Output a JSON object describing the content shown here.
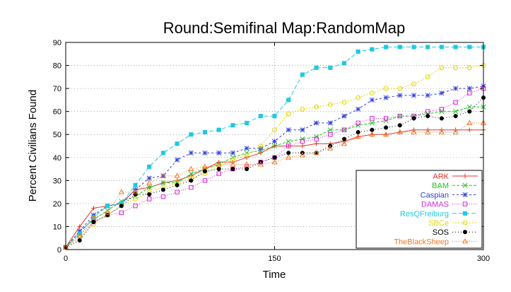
{
  "chart_data": {
    "type": "line",
    "title": "Round:Semifinal Map:RandomMap",
    "xlabel": "Time",
    "ylabel": "Percent Civilians Found",
    "xlim": [
      0,
      300
    ],
    "ylim": [
      0,
      90
    ],
    "x_ticks": [
      0,
      150,
      300
    ],
    "y_ticks": [
      0,
      10,
      20,
      30,
      40,
      50,
      60,
      70,
      80,
      90
    ],
    "grid": "dotted major grid",
    "legend_position": "bottom-right",
    "series": [
      {
        "name": "ARK",
        "color": "#e8312d",
        "marker": "plus",
        "x": [
          0,
          10,
          20,
          30,
          40,
          50,
          60,
          70,
          80,
          90,
          100,
          110,
          120,
          130,
          140,
          150,
          160,
          170,
          180,
          190,
          200,
          210,
          220,
          230,
          240,
          250,
          260,
          270,
          280,
          290,
          300
        ],
        "y": [
          1,
          10,
          18,
          19,
          20,
          26,
          27,
          29,
          30,
          32,
          35,
          38,
          38,
          40,
          42,
          45,
          45,
          45,
          46,
          46,
          47,
          49,
          50,
          50,
          51,
          52,
          52,
          52,
          52,
          52,
          52
        ]
      },
      {
        "name": "BAM",
        "color": "#22c322",
        "marker": "x",
        "x": [
          0,
          10,
          20,
          30,
          40,
          50,
          60,
          70,
          80,
          90,
          100,
          110,
          120,
          130,
          140,
          150,
          160,
          170,
          180,
          190,
          200,
          210,
          220,
          230,
          240,
          250,
          260,
          270,
          280,
          290,
          300
        ],
        "y": [
          1,
          8,
          13,
          17,
          21,
          23,
          27,
          29,
          29,
          33,
          35,
          37,
          40,
          42,
          43,
          45,
          47,
          48,
          49,
          52,
          52,
          54,
          55,
          56,
          58,
          58,
          59,
          60,
          60,
          62,
          62
        ]
      },
      {
        "name": "Caspian",
        "color": "#2f3fd8",
        "marker": "asterisk",
        "x": [
          0,
          10,
          20,
          30,
          40,
          50,
          60,
          70,
          80,
          90,
          100,
          110,
          120,
          130,
          140,
          150,
          160,
          170,
          180,
          190,
          200,
          210,
          220,
          230,
          240,
          250,
          260,
          270,
          280,
          290,
          300
        ],
        "y": [
          1,
          8,
          15,
          19,
          20,
          26,
          31,
          32,
          39,
          42,
          42,
          42,
          42,
          44,
          44,
          47,
          52,
          52,
          55,
          55,
          58,
          61,
          65,
          66,
          67,
          67,
          67,
          68,
          70,
          70,
          71
        ]
      },
      {
        "name": "DAMAS",
        "color": "#d429d4",
        "marker": "square-open",
        "x": [
          0,
          10,
          20,
          30,
          40,
          50,
          60,
          70,
          80,
          90,
          100,
          110,
          120,
          130,
          140,
          150,
          160,
          170,
          180,
          190,
          200,
          210,
          220,
          230,
          240,
          250,
          260,
          270,
          280,
          290,
          300
        ],
        "y": [
          1,
          6,
          12,
          15,
          16,
          19,
          22,
          23,
          25,
          27,
          30,
          33,
          35,
          36,
          38,
          40,
          45,
          47,
          48,
          50,
          52,
          55,
          57,
          57,
          58,
          58,
          60,
          61,
          64,
          68,
          70
        ]
      },
      {
        "name": "ResQFreiburg",
        "color": "#20c8e0",
        "marker": "square-filled",
        "x": [
          0,
          10,
          20,
          30,
          40,
          50,
          60,
          70,
          80,
          90,
          100,
          110,
          120,
          130,
          140,
          150,
          160,
          170,
          180,
          190,
          200,
          210,
          220,
          230,
          240,
          250,
          260,
          270,
          280,
          290,
          300
        ],
        "y": [
          1,
          7,
          14,
          19,
          20,
          28,
          36,
          42,
          46,
          50,
          51,
          52,
          54,
          55,
          58,
          58,
          65,
          76,
          79,
          79,
          81,
          86,
          87,
          88,
          88,
          88,
          88,
          88,
          88,
          88,
          88
        ]
      },
      {
        "name": "SBCe",
        "color": "#e0d800",
        "marker": "circle-open",
        "x": [
          0,
          10,
          20,
          30,
          40,
          50,
          60,
          70,
          80,
          90,
          100,
          110,
          120,
          130,
          140,
          150,
          160,
          170,
          180,
          190,
          200,
          210,
          220,
          230,
          240,
          250,
          260,
          270,
          280,
          290,
          300
        ],
        "y": [
          1,
          5,
          11,
          15,
          19,
          22,
          25,
          27,
          29,
          31,
          33,
          36,
          39,
          41,
          45,
          52,
          59,
          61,
          62,
          63,
          64,
          66,
          68,
          70,
          70,
          72,
          75,
          79,
          79,
          79,
          80
        ]
      },
      {
        "name": "SOS",
        "color": "#000000",
        "marker": "circle-filled",
        "x": [
          0,
          10,
          20,
          30,
          40,
          50,
          60,
          70,
          80,
          90,
          100,
          110,
          120,
          130,
          140,
          150,
          160,
          170,
          180,
          190,
          200,
          210,
          220,
          230,
          240,
          250,
          260,
          270,
          280,
          290,
          300
        ],
        "y": [
          1,
          4,
          12,
          15,
          19,
          24,
          24,
          26,
          28,
          30,
          34,
          35,
          35,
          35,
          38,
          40,
          42,
          42,
          42,
          45,
          48,
          51,
          52,
          53,
          54,
          57,
          58,
          57,
          58,
          60,
          66
        ]
      },
      {
        "name": "TheBlackSheep",
        "color": "#f07828",
        "marker": "triangle-open",
        "x": [
          0,
          10,
          20,
          30,
          40,
          50,
          60,
          70,
          80,
          90,
          100,
          110,
          120,
          130,
          140,
          150,
          160,
          170,
          180,
          190,
          200,
          210,
          220,
          230,
          240,
          250,
          260,
          270,
          280,
          290,
          300
        ],
        "y": [
          1,
          6,
          14,
          16,
          25,
          25,
          29,
          32,
          32,
          35,
          36,
          37,
          37,
          37,
          37,
          38,
          40,
          41,
          42,
          44,
          46,
          49,
          50,
          50,
          51,
          51,
          51,
          51,
          51,
          55,
          55
        ]
      }
    ]
  }
}
